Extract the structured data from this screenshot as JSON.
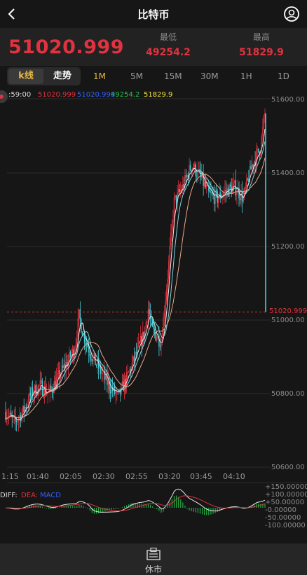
{
  "header": {
    "title": "比特币",
    "back_icon": "back-chevron-icon",
    "user_icon": "user-circle-icon"
  },
  "price": {
    "last": "51020.999",
    "low_label": "最低",
    "low": "49254.2",
    "high_label": "最高",
    "high": "51829.9"
  },
  "tabs": {
    "kline": "k线",
    "line": "走势",
    "periods": [
      "1M",
      "5M",
      "15M",
      "30M",
      "1H",
      "1D"
    ],
    "active_period": "1M"
  },
  "legend": {
    "time": ":59:00",
    "open": "51020.999",
    "close": "51020.999",
    "low": "49254.2",
    "high": "51829.9"
  },
  "colors": {
    "up": "#e0323f",
    "down": "#3fd0d8",
    "accent": "#e8b543",
    "low": "#27c24a",
    "high": "#f2e13c"
  },
  "chart_data": {
    "type": "candlestick",
    "y_ticks": [
      "51600.00",
      "51400.00",
      "51200.00",
      "51000.00",
      "50800.00",
      "50600.00"
    ],
    "y_values": [
      51600,
      51400,
      51200,
      51000,
      50800,
      50600
    ],
    "x_ticks": [
      "1:15",
      "01:40",
      "02:05",
      "02:30",
      "02:55",
      "03:20",
      "03:45",
      "04:10"
    ],
    "current_price_label": "51020.999",
    "current_price": 51020.999,
    "trend_points": [
      [
        0,
        50750
      ],
      [
        8,
        50720
      ],
      [
        16,
        50750
      ],
      [
        24,
        50800
      ],
      [
        32,
        50820
      ],
      [
        40,
        50800
      ],
      [
        48,
        50840
      ],
      [
        56,
        50880
      ],
      [
        64,
        50920
      ],
      [
        68,
        51010
      ],
      [
        72,
        50960
      ],
      [
        80,
        50900
      ],
      [
        88,
        50860
      ],
      [
        96,
        50820
      ],
      [
        104,
        50790
      ],
      [
        112,
        50840
      ],
      [
        120,
        50900
      ],
      [
        128,
        50960
      ],
      [
        132,
        51030
      ],
      [
        136,
        50970
      ],
      [
        144,
        50940
      ],
      [
        150,
        51120
      ],
      [
        156,
        51320
      ],
      [
        164,
        51360
      ],
      [
        172,
        51420
      ],
      [
        180,
        51390
      ],
      [
        188,
        51340
      ],
      [
        196,
        51330
      ],
      [
        204,
        51350
      ],
      [
        212,
        51360
      ],
      [
        220,
        51330
      ],
      [
        228,
        51420
      ],
      [
        236,
        51470
      ],
      [
        240,
        51560
      ]
    ],
    "macd": {
      "diff_label": "DIFF:",
      "dea_label": "DEA:",
      "macd_label": "MACD",
      "ticks": [
        "+150.00000",
        "+100.00000",
        "+50.00000",
        "-0.00000",
        "-50.00000",
        "-100.00000"
      ]
    }
  },
  "nav": {
    "label": "休市",
    "icon": "market-closed-icon"
  }
}
